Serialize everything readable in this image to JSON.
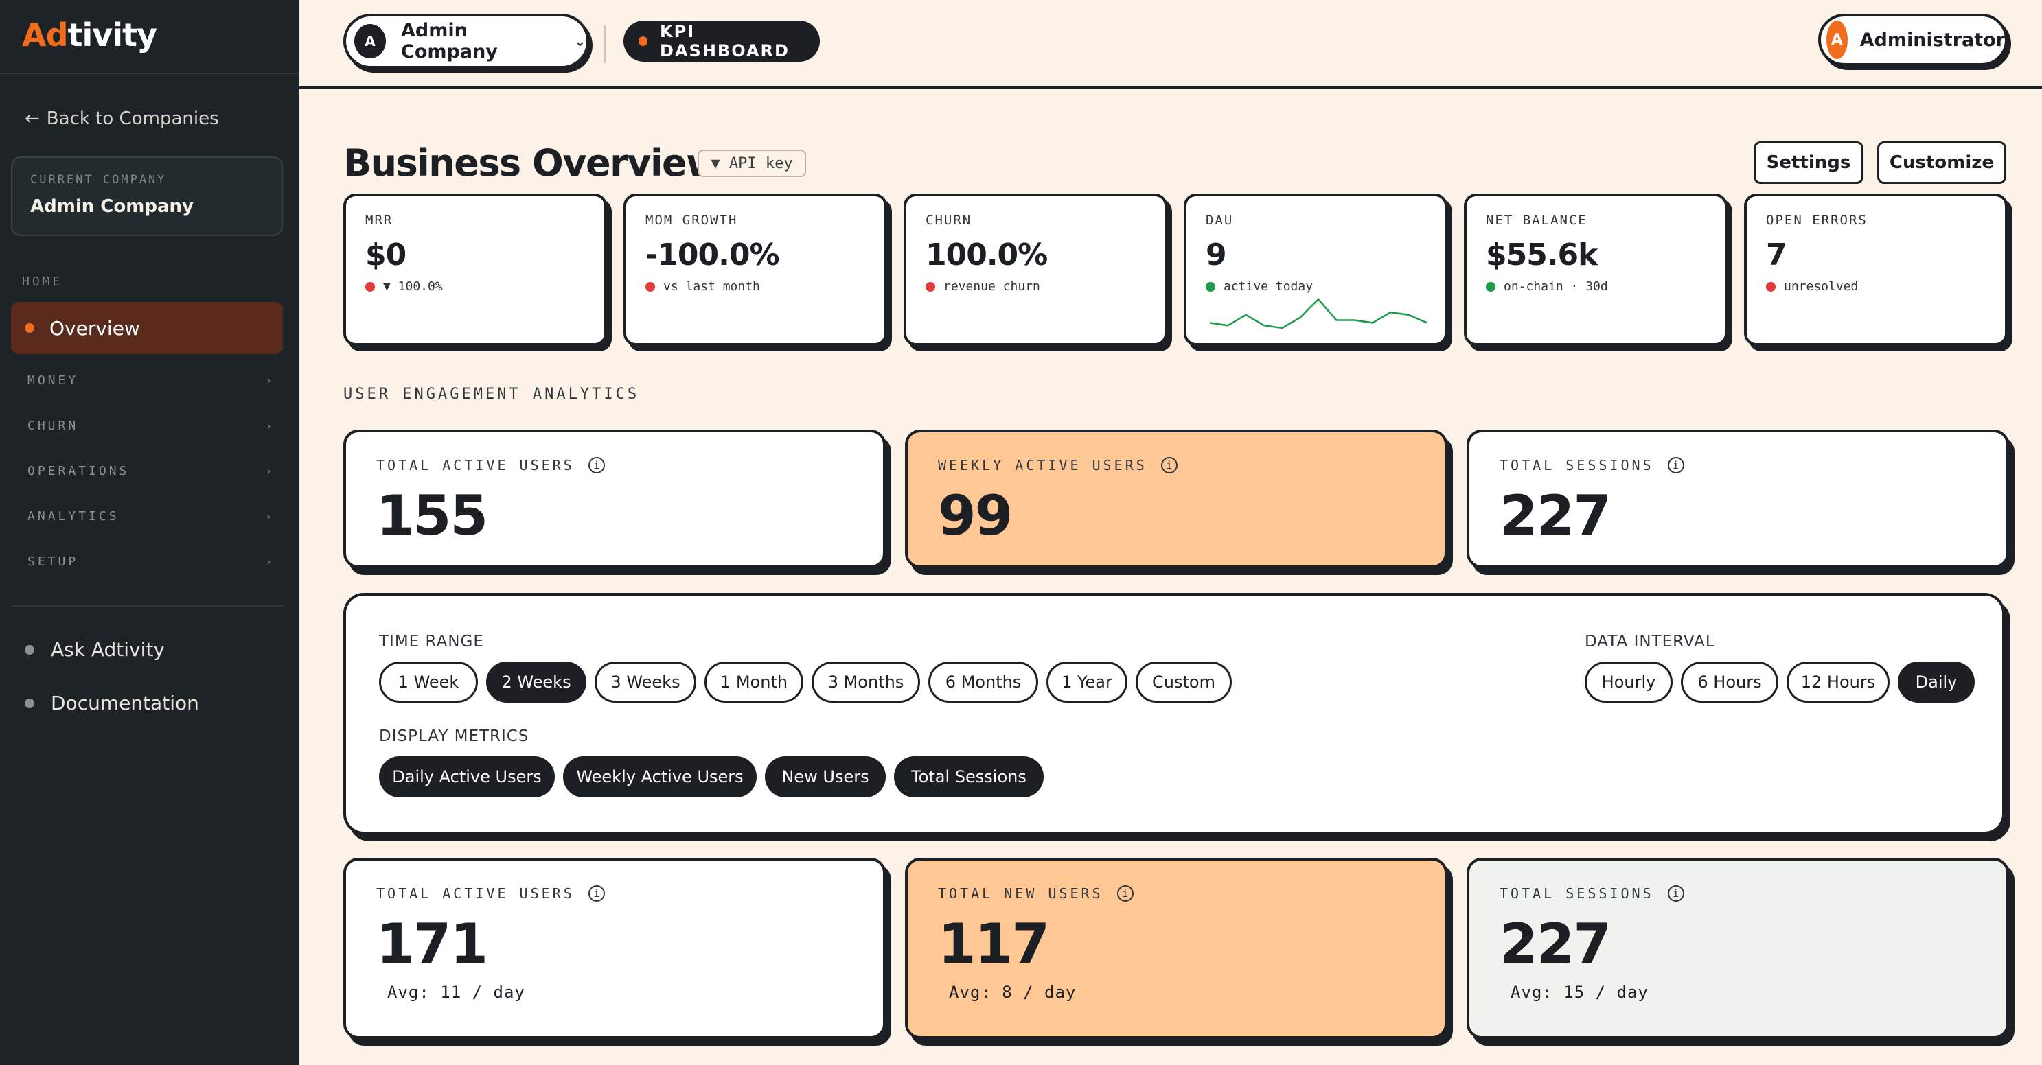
{
  "sidebar": {
    "logo_a": "A",
    "logo_d": "d",
    "logo_rest": "tivity",
    "back_link": "Back to Companies",
    "current_company_caption": "CURRENT COMPANY",
    "current_company": "Admin Company",
    "section_home": "HOME",
    "active_item": "Overview",
    "groups": [
      "MONEY",
      "CHURN",
      "OPERATIONS",
      "ANALYTICS",
      "SETUP"
    ],
    "bottom_links": [
      "Ask Adtivity",
      "Documentation"
    ]
  },
  "topbar": {
    "company_initial": "A",
    "company_name": "Admin Company",
    "dashboard_pill": "KPI DASHBOARD",
    "user_initial": "A",
    "user_name": "Administrator"
  },
  "header": {
    "title": "Business Overview",
    "api_key_chip": "▼ API key",
    "settings_button": "Settings",
    "customize_button": "Customize"
  },
  "kpis": [
    {
      "caption": "MRR",
      "value": "$0",
      "sub": "▼ 100.0%",
      "status": "red"
    },
    {
      "caption": "MOM GROWTH",
      "value": "-100.0%",
      "sub": "vs last month",
      "status": "red"
    },
    {
      "caption": "CHURN",
      "value": "100.0%",
      "sub": "revenue churn",
      "status": "red"
    },
    {
      "caption": "DAU",
      "value": "9",
      "sub": "active today",
      "status": "green"
    },
    {
      "caption": "NET BALANCE",
      "value": "$55.6k",
      "sub": "on-chain · 30d",
      "status": "green"
    },
    {
      "caption": "OPEN ERRORS",
      "value": "7",
      "sub": "unresolved",
      "status": "red"
    }
  ],
  "dau_sparkline": [
    2,
    1,
    5,
    1,
    0,
    4,
    11,
    3,
    3,
    2,
    6,
    5,
    2
  ],
  "engagement": {
    "section_label": "USER ENGAGEMENT ANALYTICS",
    "top_stats": [
      {
        "caption": "TOTAL ACTIVE USERS",
        "value": "155"
      },
      {
        "caption": "WEEKLY ACTIVE USERS",
        "value": "99"
      },
      {
        "caption": "TOTAL SESSIONS",
        "value": "227"
      }
    ],
    "bottom_stats": [
      {
        "caption": "TOTAL ACTIVE USERS",
        "value": "171",
        "avg": "Avg: 11 / day"
      },
      {
        "caption": "TOTAL NEW USERS",
        "value": "117",
        "avg": "Avg: 8 / day"
      },
      {
        "caption": "TOTAL SESSIONS",
        "value": "227",
        "avg": "Avg: 15 / day"
      }
    ]
  },
  "filters": {
    "time_range_label": "TIME RANGE",
    "time_ranges": [
      "1 Week",
      "2 Weeks",
      "3 Weeks",
      "1 Month",
      "3 Months",
      "6 Months",
      "1 Year",
      "Custom"
    ],
    "time_range_selected": "2 Weeks",
    "data_interval_label": "DATA INTERVAL",
    "intervals": [
      "Hourly",
      "6 Hours",
      "12 Hours",
      "Daily"
    ],
    "interval_selected": "Daily",
    "display_metrics_label": "DISPLAY METRICS",
    "metrics": [
      "Daily Active Users",
      "Weekly Active Users",
      "New Users",
      "Total Sessions"
    ]
  },
  "colors": {
    "accent": "#f26c1e",
    "sidebar_bg": "#1d2326",
    "page_bg": "#fdf2e7",
    "card_orange": "#fec793",
    "card_mint": "#eef3ee",
    "status_red": "#e03a3a",
    "status_green": "#1e9a4a"
  }
}
